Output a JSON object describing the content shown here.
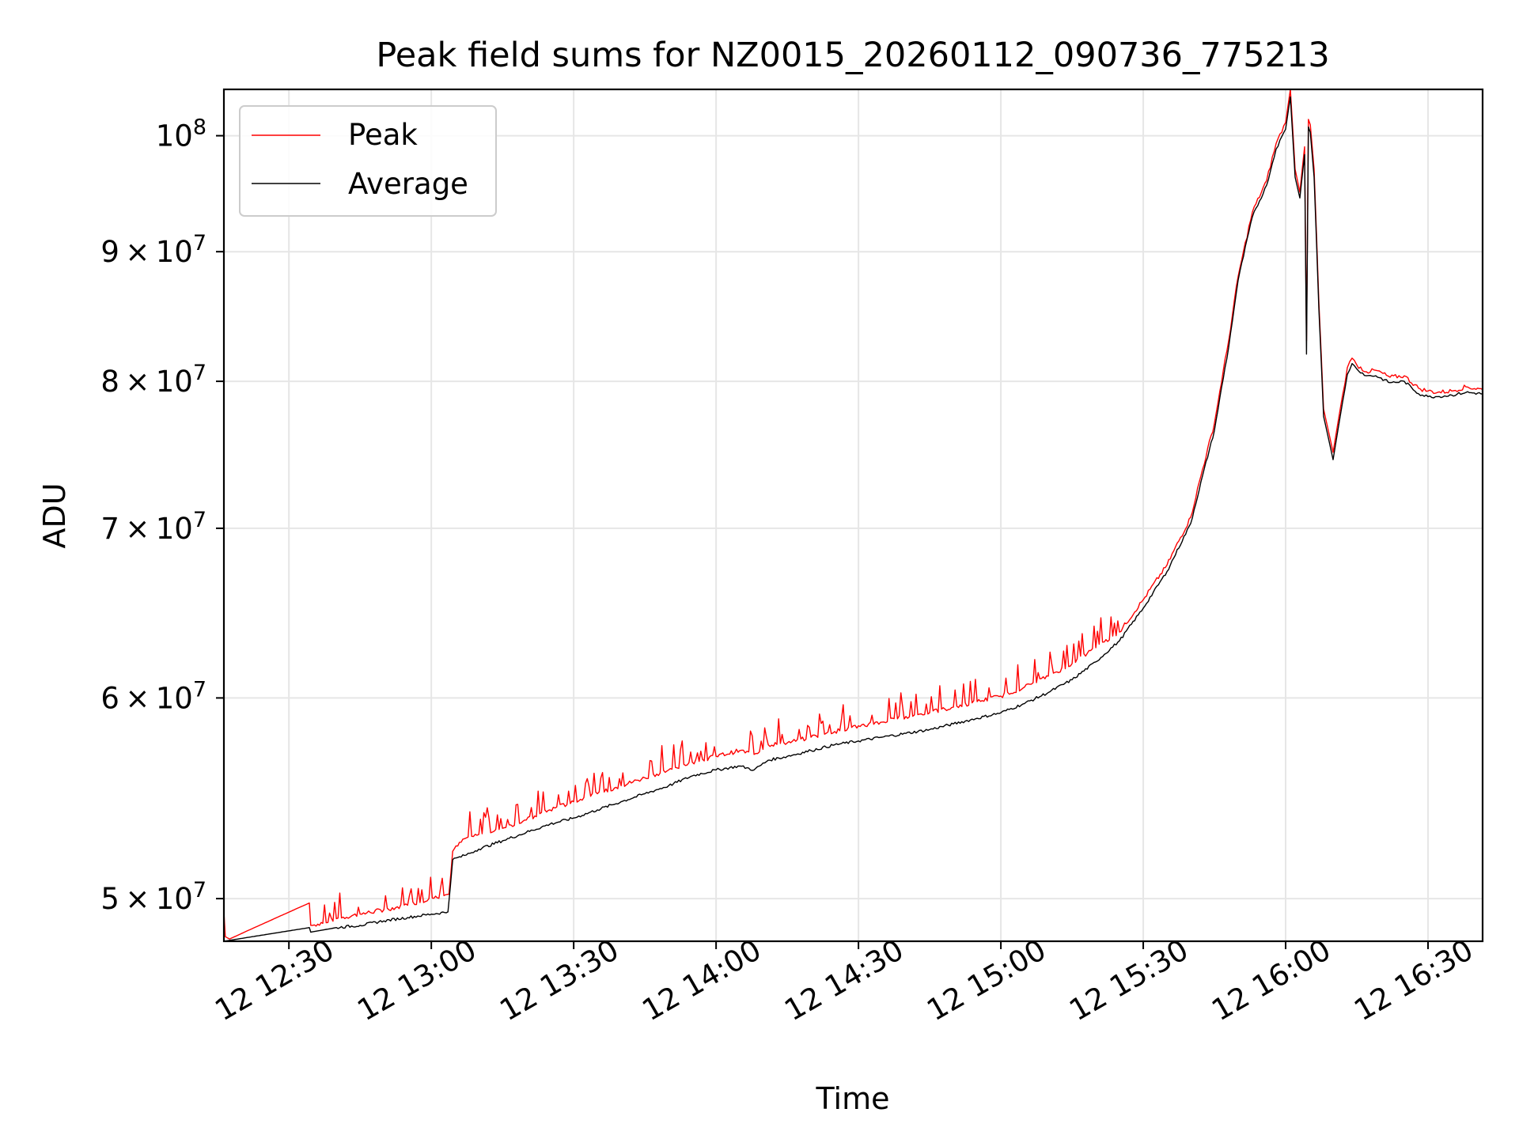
{
  "chart_data": {
    "type": "line",
    "title": "Peak field sums for NZ0015_20260112_090736_775213",
    "xlabel": "Time",
    "ylabel": "ADU",
    "x_unit": "minutes after 12:00 on day 12",
    "xlim": [
      16.3,
      281.5
    ],
    "ylim": [
      48100000,
      104300000
    ],
    "y_scale": "log",
    "grid": true,
    "legend_position": "top-left",
    "x_ticks": [
      {
        "value": 30,
        "label": "12 12:30"
      },
      {
        "value": 60,
        "label": "12 13:00"
      },
      {
        "value": 90,
        "label": "12 13:30"
      },
      {
        "value": 120,
        "label": "12 14:00"
      },
      {
        "value": 150,
        "label": "12 14:30"
      },
      {
        "value": 180,
        "label": "12 15:00"
      },
      {
        "value": 210,
        "label": "12 15:30"
      },
      {
        "value": 240,
        "label": "12 16:00"
      },
      {
        "value": 270,
        "label": "12 16:30"
      }
    ],
    "y_ticks": [
      {
        "value": 50000000,
        "mantissa": "5",
        "exp": "7"
      },
      {
        "value": 60000000,
        "mantissa": "6",
        "exp": "7"
      },
      {
        "value": 70000000,
        "mantissa": "7",
        "exp": "7"
      },
      {
        "value": 80000000,
        "mantissa": "8",
        "exp": "7"
      },
      {
        "value": 90000000,
        "mantissa": "9",
        "exp": "7"
      },
      {
        "value": 100000000,
        "mantissa": "",
        "exp": "8"
      }
    ],
    "series": [
      {
        "name": "Peak",
        "color": "#ff0000",
        "x": [
          16.3,
          16.6,
          17.5,
          34.3,
          34.6,
          35,
          40,
          45,
          50,
          55,
          59.5,
          63.7,
          64.5,
          67,
          70,
          75,
          80,
          85,
          90,
          95,
          100,
          105,
          110,
          115,
          120,
          125,
          128,
          131,
          135,
          140,
          145,
          150,
          155,
          160,
          165,
          170,
          175,
          180,
          185,
          190,
          195,
          200,
          205,
          210,
          215,
          220,
          225,
          228,
          230,
          233,
          236,
          238,
          240,
          241,
          242,
          243,
          244,
          244.4,
          244.8,
          245.2,
          246,
          247,
          248,
          250,
          251,
          252,
          253,
          254,
          255,
          257,
          259,
          262,
          265,
          268,
          270,
          272,
          275,
          278,
          281.5
        ],
        "y": [
          49400000,
          48300000,
          48200000,
          49800000,
          48800000,
          48800000,
          49100000,
          49300000,
          49500000,
          49700000,
          50000000,
          50200000,
          52200000,
          52800000,
          53000000,
          53300000,
          53700000,
          54200000,
          54600000,
          55000000,
          55400000,
          55800000,
          56200000,
          56600000,
          56900000,
          57200000,
          57000000,
          57500000,
          57600000,
          57900000,
          58200000,
          58500000,
          58700000,
          59000000,
          59200000,
          59500000,
          59800000,
          60100000,
          60600000,
          61200000,
          61900000,
          62800000,
          63700000,
          65600000,
          67700000,
          70700000,
          77000000,
          83000000,
          88000000,
          93300000,
          96000000,
          99300000,
          101200000,
          104300000,
          97000000,
          95000000,
          99000000,
          83000000,
          101500000,
          101000000,
          97000000,
          86000000,
          78000000,
          75000000,
          77000000,
          79000000,
          81000000,
          81700000,
          81200000,
          80700000,
          80800000,
          80300000,
          80400000,
          79500000,
          79300000,
          79200000,
          79300000,
          79600000,
          79400000
        ]
      },
      {
        "name": "Average",
        "color": "#000000",
        "x": [
          16.3,
          34.3,
          34.6,
          40,
          45,
          50,
          55,
          60,
          63.5,
          64.5,
          67,
          70,
          75,
          80,
          85,
          90,
          95,
          100,
          105,
          110,
          115,
          120,
          125,
          128,
          131,
          135,
          140,
          145,
          150,
          155,
          160,
          165,
          170,
          175,
          180,
          185,
          190,
          195,
          200,
          205,
          210,
          215,
          220,
          225,
          228,
          230,
          233,
          236,
          238,
          240,
          241,
          242,
          243,
          244,
          244.4,
          244.8,
          245.2,
          246,
          247,
          248,
          250,
          251,
          252,
          253,
          254,
          255,
          257,
          259,
          262,
          265,
          268,
          270,
          272,
          275,
          278,
          281.5
        ],
        "y": [
          48100000,
          48700000,
          48500000,
          48700000,
          48800000,
          49000000,
          49150000,
          49300000,
          49400000,
          51800000,
          52000000,
          52300000,
          52700000,
          53100000,
          53500000,
          53800000,
          54200000,
          54600000,
          55000000,
          55400000,
          55900000,
          56200000,
          56400000,
          56200000,
          56700000,
          56900000,
          57200000,
          57500000,
          57700000,
          57900000,
          58100000,
          58300000,
          58600000,
          58900000,
          59200000,
          59700000,
          60300000,
          61000000,
          62000000,
          63200000,
          65100000,
          67300000,
          70300000,
          76500000,
          82500000,
          87700000,
          92900000,
          95600000,
          98800000,
          100600000,
          103600000,
          96300000,
          94500000,
          98300000,
          82000000,
          100800000,
          100300000,
          96300000,
          85500000,
          77500000,
          74500000,
          76500000,
          78500000,
          80500000,
          81300000,
          80900000,
          80400000,
          80400000,
          79900000,
          80000000,
          79100000,
          78900000,
          78900000,
          79000000,
          79200000,
          79100000
        ]
      }
    ]
  }
}
